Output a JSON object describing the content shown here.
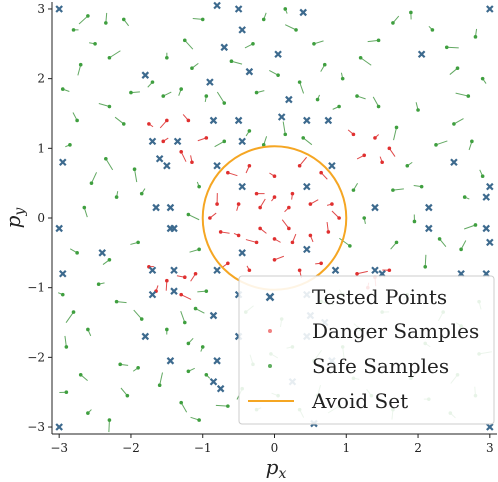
{
  "chart_data": {
    "type": "scatter",
    "xlabel": "p_x",
    "ylabel": "p_y",
    "xlim": [
      -3.1,
      3.1
    ],
    "ylim": [
      -3.1,
      3.1
    ],
    "xticks": [
      "−3",
      "−2",
      "−1",
      "0",
      "1",
      "2",
      "3"
    ],
    "yticks": [
      "−3",
      "−2",
      "−1",
      "0",
      "1",
      "2",
      "3"
    ],
    "grid": false,
    "legend_position": "bottom-right",
    "legend": [
      "Tested Points",
      "Danger Samples",
      "Safe Samples",
      "Avoid Set"
    ],
    "avoid_set": {
      "center": [
        0,
        0
      ],
      "radius": 1.0,
      "color": "#f5a623"
    },
    "tested_points": [
      [
        -3,
        3
      ],
      [
        -3,
        -3
      ],
      [
        3,
        3
      ],
      [
        3,
        -3
      ],
      [
        -2.95,
        0.8
      ],
      [
        -2.95,
        -0.8
      ],
      [
        -3,
        -0.15
      ],
      [
        3,
        0.45
      ],
      [
        3,
        -0.35
      ],
      [
        2.95,
        0.3
      ],
      [
        2.95,
        -0.15
      ],
      [
        2.95,
        -0.8
      ],
      [
        -1.8,
        2.05
      ],
      [
        -1.8,
        -1.7
      ],
      [
        2.05,
        2.35
      ],
      [
        -0.5,
        3.0
      ],
      [
        -0.8,
        3.05
      ],
      [
        -0.45,
        2.7
      ],
      [
        -0.7,
        2.45
      ],
      [
        -0.35,
        2.1
      ],
      [
        -0.9,
        1.95
      ],
      [
        -1.7,
        1.1
      ],
      [
        -1.35,
        1.1
      ],
      [
        -1.6,
        0.85
      ],
      [
        -1.5,
        0.75
      ],
      [
        -1.65,
        0.15
      ],
      [
        -1.45,
        0.15
      ],
      [
        -1.4,
        -0.15
      ],
      [
        -1.7,
        -0.75
      ],
      [
        -1.4,
        -0.75
      ],
      [
        -1.4,
        -1.05
      ],
      [
        -1.7,
        -1.1
      ],
      [
        -0.85,
        1.4
      ],
      [
        -0.5,
        1.4
      ],
      [
        -0.45,
        1.1
      ],
      [
        -0.8,
        0.75
      ],
      [
        -0.8,
        -0.75
      ],
      [
        -0.5,
        -1.1
      ],
      [
        -0.85,
        -1.4
      ],
      [
        -0.5,
        -1.7
      ],
      [
        -0.8,
        -2.05
      ],
      [
        -0.85,
        -2.35
      ],
      [
        -0.75,
        -2.45
      ],
      [
        -0.45,
        0.45
      ],
      [
        0.45,
        0.45
      ],
      [
        -0.45,
        -0.5
      ],
      [
        0.45,
        -0.45
      ],
      [
        0.2,
        1.7
      ],
      [
        0.1,
        1.45
      ],
      [
        0.45,
        1.4
      ],
      [
        0.75,
        1.4
      ],
      [
        0.8,
        0.75
      ],
      [
        0.85,
        -0.75
      ],
      [
        0.45,
        -1.1
      ],
      [
        0.5,
        -1.4
      ],
      [
        0.7,
        -1.5
      ],
      [
        0.45,
        -1.7
      ],
      [
        1.4,
        -0.75
      ],
      [
        1.5,
        -0.8
      ],
      [
        -1.45,
        -2.05
      ],
      [
        0.25,
        -2.35
      ],
      [
        0.55,
        -2.95
      ],
      [
        0.8,
        -2.05
      ],
      [
        -2.4,
        -0.5
      ],
      [
        -1.45,
        -0.15
      ],
      [
        1.4,
        0.15
      ],
      [
        2.15,
        -0.15
      ],
      [
        2.15,
        0.15
      ],
      [
        2.5,
        0.8
      ],
      [
        2.6,
        -0.8
      ],
      [
        0.05,
        2.35
      ],
      [
        0.4,
        2.95
      ]
    ],
    "danger_samples": [
      [
        -1.75,
        1.35
      ],
      [
        -1.5,
        1.4
      ],
      [
        -1.2,
        1.4
      ],
      [
        -1.55,
        1.1
      ],
      [
        -1.3,
        0.95
      ],
      [
        -0.95,
        1.15
      ],
      [
        -1.15,
        0.8
      ],
      [
        -1.75,
        -0.7
      ],
      [
        -1.5,
        -0.9
      ],
      [
        -1.25,
        -0.85
      ],
      [
        -1.65,
        -1.05
      ],
      [
        -1.3,
        -1.1
      ],
      [
        -1.1,
        -0.8
      ],
      [
        1.1,
        1.2
      ],
      [
        1.4,
        1.15
      ],
      [
        1.6,
        1.0
      ],
      [
        1.25,
        0.9
      ],
      [
        1.5,
        0.8
      ],
      [
        1.15,
        -0.8
      ],
      [
        1.4,
        -0.85
      ],
      [
        1.6,
        -0.75
      ],
      [
        1.3,
        -1.0
      ],
      [
        -0.65,
        0.65
      ],
      [
        -0.35,
        0.75
      ],
      [
        0.0,
        0.6
      ],
      [
        0.35,
        0.75
      ],
      [
        0.65,
        0.65
      ],
      [
        -0.65,
        -0.65
      ],
      [
        -0.35,
        -0.75
      ],
      [
        0.0,
        -0.6
      ],
      [
        0.35,
        -0.75
      ],
      [
        0.65,
        -0.65
      ],
      [
        -0.8,
        0.2
      ],
      [
        -0.75,
        -0.2
      ],
      [
        -0.5,
        0.2
      ],
      [
        -0.5,
        -0.25
      ],
      [
        -0.2,
        0.15
      ],
      [
        -0.2,
        -0.15
      ],
      [
        0.2,
        0.15
      ],
      [
        0.2,
        -0.15
      ],
      [
        0.5,
        0.2
      ],
      [
        0.5,
        -0.25
      ],
      [
        0.8,
        0.2
      ],
      [
        0.75,
        -0.2
      ],
      [
        -0.25,
        0.35
      ],
      [
        0.25,
        0.35
      ],
      [
        -0.25,
        -0.35
      ],
      [
        0.25,
        -0.35
      ],
      [
        0.0,
        -0.3
      ],
      [
        0.0,
        0.3
      ],
      [
        0.9,
        0.0
      ],
      [
        -0.9,
        0.0
      ]
    ],
    "safe_samples": [
      [
        -2.8,
        2.7
      ],
      [
        -2.6,
        2.9
      ],
      [
        -2.35,
        2.8
      ],
      [
        -2.1,
        2.85
      ],
      [
        -2.5,
        2.5
      ],
      [
        -2.3,
        2.3
      ],
      [
        -2.7,
        2.2
      ],
      [
        -2.75,
        1.4
      ],
      [
        -2.95,
        1.85
      ],
      [
        -2.85,
        1.05
      ],
      [
        -2.55,
        0.5
      ],
      [
        -2.65,
        0.15
      ],
      [
        -2.75,
        -0.5
      ],
      [
        -2.45,
        -0.95
      ],
      [
        -2.8,
        -1.35
      ],
      [
        -2.9,
        -1.85
      ],
      [
        -2.7,
        -2.25
      ],
      [
        -2.9,
        -2.5
      ],
      [
        -2.6,
        -2.8
      ],
      [
        -2.3,
        -2.9
      ],
      [
        -2.05,
        -2.55
      ],
      [
        -2.15,
        -2.1
      ],
      [
        -1.9,
        -2.15
      ],
      [
        -1.6,
        -2.4
      ],
      [
        -1.3,
        -2.65
      ],
      [
        -1.05,
        -2.9
      ],
      [
        -1.2,
        -2.2
      ],
      [
        -1.0,
        -1.85
      ],
      [
        -1.25,
        -1.5
      ],
      [
        -1.1,
        -1.3
      ],
      [
        -1.9,
        -0.35
      ],
      [
        -1.85,
        0.35
      ],
      [
        -1.95,
        0.7
      ],
      [
        -2.1,
        1.35
      ],
      [
        -2.0,
        1.8
      ],
      [
        -1.7,
        1.95
      ],
      [
        -1.5,
        2.3
      ],
      [
        -1.25,
        2.55
      ],
      [
        -1.0,
        2.85
      ],
      [
        -1.15,
        2.15
      ],
      [
        -0.95,
        1.75
      ],
      [
        -0.7,
        1.65
      ],
      [
        -0.6,
        2.25
      ],
      [
        -0.3,
        2.5
      ],
      [
        -0.15,
        2.85
      ],
      [
        0.15,
        3.0
      ],
      [
        0.3,
        2.7
      ],
      [
        0.55,
        2.5
      ],
      [
        0.7,
        2.2
      ],
      [
        0.95,
        2.0
      ],
      [
        1.2,
        2.3
      ],
      [
        1.45,
        2.55
      ],
      [
        1.65,
        2.8
      ],
      [
        1.9,
        2.95
      ],
      [
        2.2,
        2.7
      ],
      [
        2.4,
        2.45
      ],
      [
        2.55,
        2.15
      ],
      [
        2.8,
        2.6
      ],
      [
        2.9,
        2.0
      ],
      [
        2.7,
        1.75
      ],
      [
        2.5,
        1.35
      ],
      [
        2.75,
        1.1
      ],
      [
        2.9,
        0.6
      ],
      [
        2.65,
        0.3
      ],
      [
        2.8,
        -0.1
      ],
      [
        2.6,
        -0.45
      ],
      [
        2.85,
        -1.2
      ],
      [
        2.6,
        -1.55
      ],
      [
        2.85,
        -1.95
      ],
      [
        2.55,
        -2.25
      ],
      [
        2.8,
        -2.55
      ],
      [
        2.45,
        -2.8
      ],
      [
        2.15,
        -2.6
      ],
      [
        1.9,
        -2.3
      ],
      [
        1.65,
        -2.75
      ],
      [
        1.35,
        -2.55
      ],
      [
        1.1,
        -2.3
      ],
      [
        0.9,
        -2.7
      ],
      [
        0.6,
        -2.55
      ],
      [
        0.35,
        -2.75
      ],
      [
        0.05,
        -2.55
      ],
      [
        -0.25,
        -2.75
      ],
      [
        -0.45,
        -2.45
      ],
      [
        -0.3,
        -2.1
      ],
      [
        -0.05,
        -1.95
      ],
      [
        0.25,
        -1.85
      ],
      [
        0.55,
        -2.05
      ],
      [
        0.95,
        -1.85
      ],
      [
        1.2,
        -1.6
      ],
      [
        1.5,
        -1.35
      ],
      [
        1.85,
        -1.1
      ],
      [
        2.1,
        -0.7
      ],
      [
        2.3,
        -0.3
      ],
      [
        2.05,
        0.45
      ],
      [
        1.85,
        0.75
      ],
      [
        1.7,
        1.3
      ],
      [
        1.45,
        1.6
      ],
      [
        1.15,
        1.75
      ],
      [
        0.9,
        1.6
      ],
      [
        0.6,
        1.7
      ],
      [
        0.35,
        1.95
      ],
      [
        0.05,
        2.05
      ],
      [
        -0.25,
        1.8
      ],
      [
        -0.35,
        1.25
      ],
      [
        0.15,
        1.2
      ],
      [
        0.4,
        1.15
      ],
      [
        -0.95,
        -1.05
      ],
      [
        -1.2,
        -1.8
      ],
      [
        -1.5,
        -1.6
      ],
      [
        -1.85,
        -1.45
      ],
      [
        -2.2,
        -1.2
      ],
      [
        -2.3,
        -0.6
      ],
      [
        -2.2,
        0.3
      ],
      [
        -2.35,
        0.85
      ],
      [
        -2.3,
        1.6
      ],
      [
        -1.55,
        1.75
      ],
      [
        -1.3,
        1.85
      ],
      [
        -1.05,
        0.45
      ],
      [
        -1.2,
        0.05
      ],
      [
        -1.05,
        -0.45
      ],
      [
        1.1,
        0.4
      ],
      [
        1.25,
        0.0
      ],
      [
        1.05,
        -0.4
      ],
      [
        1.65,
        0.4
      ],
      [
        1.7,
        -0.35
      ],
      [
        1.95,
        -0.05
      ],
      [
        -0.95,
        -2.25
      ],
      [
        -0.65,
        -2.7
      ],
      [
        -0.4,
        -1.35
      ],
      [
        0.1,
        -1.45
      ],
      [
        0.95,
        -1.1
      ],
      [
        0.65,
        -1.2
      ],
      [
        -0.7,
        1.1
      ],
      [
        -0.15,
        1.05
      ],
      [
        -2.6,
        -1.6
      ],
      [
        -2.95,
        -1.1
      ],
      [
        2.25,
        1.05
      ],
      [
        2.35,
        -1.35
      ],
      [
        2.0,
        1.55
      ],
      [
        2.1,
        -1.8
      ]
    ]
  }
}
